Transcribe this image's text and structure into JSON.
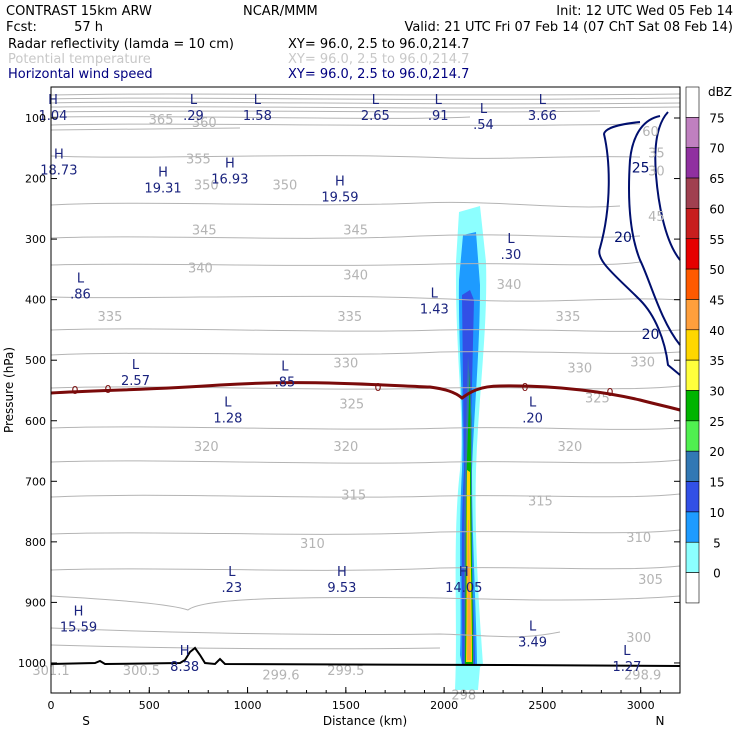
{
  "header": {
    "model": "CONTRAST 15km ARW",
    "center": "NCAR/MMM",
    "init": "Init: 12 UTC Wed 05 Feb 14",
    "fcst_label": "Fcst:",
    "fcst_value": "57 h",
    "valid": "Valid: 21 UTC Fri 07 Feb 14 (07 ChT Sat 08 Feb 14)",
    "fields": [
      {
        "name": "Radar reflectivity (lamda = 10 cm)",
        "xy": "XY=  96.0,  2.5 to  96.0,214.7",
        "color": "#000000"
      },
      {
        "name": "Potential temperature",
        "xy": "XY=  96.0,  2.5 to  96.0,214.7",
        "color": "#c8c8c8"
      },
      {
        "name": "Horizontal wind speed",
        "xy": "XY=  96.0,  2.5 to  96.0,214.7",
        "color": "#000080"
      }
    ]
  },
  "colors": {
    "theta_contour": "#b4b4b4",
    "wind_contour": "#000f6e",
    "freezing_line": "#7a0a0a",
    "hl_label": "#1a237e",
    "terrain": "#000000"
  },
  "chart_data": {
    "type": "contour_cross_section",
    "xlabel": "Distance (km)",
    "ylabel": "Pressure (hPa)",
    "xlim": [
      0,
      3200
    ],
    "ylim": [
      1050,
      60
    ],
    "x_ticks": [
      "0",
      "500",
      "1000",
      "1500",
      "2000",
      "2500",
      "3000"
    ],
    "y_ticks": [
      "100",
      "200",
      "300",
      "400",
      "500",
      "600",
      "700",
      "800",
      "900",
      "1000"
    ],
    "left_end_label": "S",
    "right_end_label": "N",
    "colorbar": {
      "unit": "dBZ",
      "levels": [
        "75",
        "70",
        "65",
        "60",
        "55",
        "50",
        "45",
        "40",
        "35",
        "30",
        "25",
        "20",
        "15",
        "10",
        "5",
        "0"
      ],
      "colors": [
        "#ffffff",
        "#c080c0",
        "#9030a0",
        "#a04050",
        "#c81e1e",
        "#e60000",
        "#ff5a00",
        "#ff9f3c",
        "#ffd700",
        "#ffff3c",
        "#00b400",
        "#50f050",
        "#3278b4",
        "#3250e6",
        "#1e9bff",
        "#8cffff",
        "#ffffff"
      ]
    },
    "theta_labels": [
      {
        "text": "365",
        "x": 560,
        "p": 110
      },
      {
        "text": "360",
        "x": 780,
        "p": 115
      },
      {
        "text": "355",
        "x": 750,
        "p": 175
      },
      {
        "text": "350",
        "x": 1190,
        "p": 218
      },
      {
        "text": "350",
        "x": 790,
        "p": 218
      },
      {
        "text": "345",
        "x": 780,
        "p": 292
      },
      {
        "text": "345",
        "x": 1550,
        "p": 292
      },
      {
        "text": "340",
        "x": 760,
        "p": 355
      },
      {
        "text": "340",
        "x": 1550,
        "p": 367
      },
      {
        "text": "340",
        "x": 2330,
        "p": 382
      },
      {
        "text": "335",
        "x": 300,
        "p": 435
      },
      {
        "text": "335",
        "x": 1520,
        "p": 435
      },
      {
        "text": "335",
        "x": 2630,
        "p": 435
      },
      {
        "text": "330",
        "x": 1500,
        "p": 512
      },
      {
        "text": "330",
        "x": 2690,
        "p": 520
      },
      {
        "text": "330",
        "x": 3010,
        "p": 510
      },
      {
        "text": "325",
        "x": 1530,
        "p": 580
      },
      {
        "text": "325",
        "x": 2780,
        "p": 570
      },
      {
        "text": "320",
        "x": 790,
        "p": 650
      },
      {
        "text": "320",
        "x": 1500,
        "p": 650
      },
      {
        "text": "320",
        "x": 2640,
        "p": 650
      },
      {
        "text": "315",
        "x": 1540,
        "p": 730
      },
      {
        "text": "315",
        "x": 2490,
        "p": 740
      },
      {
        "text": "310",
        "x": 1330,
        "p": 810
      },
      {
        "text": "310",
        "x": 2990,
        "p": 800
      },
      {
        "text": "305",
        "x": 3050,
        "p": 870
      },
      {
        "text": "300",
        "x": 2990,
        "p": 965
      },
      {
        "text": "301.1",
        "x": 0,
        "p": 1020
      },
      {
        "text": "300.5",
        "x": 460,
        "p": 1020
      },
      {
        "text": "299.6",
        "x": 1170,
        "p": 1027
      },
      {
        "text": "299.5",
        "x": 1500,
        "p": 1020
      },
      {
        "text": "298.9",
        "x": 3010,
        "p": 1027
      },
      {
        "text": "298",
        "x": 2100,
        "p": 1060
      }
    ],
    "wind_labels": [
      {
        "text": "25",
        "x": 3000,
        "p": 190
      },
      {
        "text": "20",
        "x": 2910,
        "p": 305
      },
      {
        "text": "20",
        "x": 3050,
        "p": 465
      },
      {
        "text": "60",
        "x": 3050,
        "p": 130
      },
      {
        "text": "35",
        "x": 3080,
        "p": 165
      },
      {
        "text": "30",
        "x": 3080,
        "p": 195
      },
      {
        "text": "45",
        "x": 3080,
        "p": 270
      }
    ],
    "hl_labels": [
      {
        "letter": "H",
        "value": "1.04",
        "x": 10,
        "p": 90
      },
      {
        "letter": "L",
        "value": ".29",
        "x": 725,
        "p": 90
      },
      {
        "letter": "L",
        "value": "1.58",
        "x": 1050,
        "p": 90
      },
      {
        "letter": "L",
        "value": "2.65",
        "x": 1650,
        "p": 90
      },
      {
        "letter": "L",
        "value": ".91",
        "x": 1970,
        "p": 90
      },
      {
        "letter": "L",
        "value": ".54",
        "x": 2200,
        "p": 105
      },
      {
        "letter": "L",
        "value": "3.66",
        "x": 2500,
        "p": 90
      },
      {
        "letter": "H",
        "value": "18.73",
        "x": 40,
        "p": 180
      },
      {
        "letter": "H",
        "value": "19.31",
        "x": 570,
        "p": 210
      },
      {
        "letter": "H",
        "value": "16.93",
        "x": 910,
        "p": 195
      },
      {
        "letter": "H",
        "value": "19.59",
        "x": 1470,
        "p": 225
      },
      {
        "letter": "L",
        "value": ".30",
        "x": 2340,
        "p": 320
      },
      {
        "letter": "L",
        "value": ".86",
        "x": 150,
        "p": 385
      },
      {
        "letter": "L",
        "value": "1.43",
        "x": 1950,
        "p": 410
      },
      {
        "letter": "L",
        "value": "2.57",
        "x": 430,
        "p": 528
      },
      {
        "letter": "L",
        "value": ".85",
        "x": 1190,
        "p": 530
      },
      {
        "letter": "L",
        "value": "1.28",
        "x": 900,
        "p": 590
      },
      {
        "letter": "L",
        "value": ".20",
        "x": 2450,
        "p": 590
      },
      {
        "letter": "L",
        "value": ".23",
        "x": 920,
        "p": 870
      },
      {
        "letter": "H",
        "value": "9.53",
        "x": 1480,
        "p": 870
      },
      {
        "letter": "H",
        "value": "14.05",
        "x": 2100,
        "p": 870
      },
      {
        "letter": "H",
        "value": "15.59",
        "x": 140,
        "p": 935
      },
      {
        "letter": "L",
        "value": "3.49",
        "x": 2450,
        "p": 960
      },
      {
        "letter": "H",
        "value": "8.38",
        "x": 680,
        "p": 1000
      },
      {
        "letter": "L",
        "value": "1.27",
        "x": 2930,
        "p": 1000
      }
    ],
    "freezing_level_label": "0"
  }
}
